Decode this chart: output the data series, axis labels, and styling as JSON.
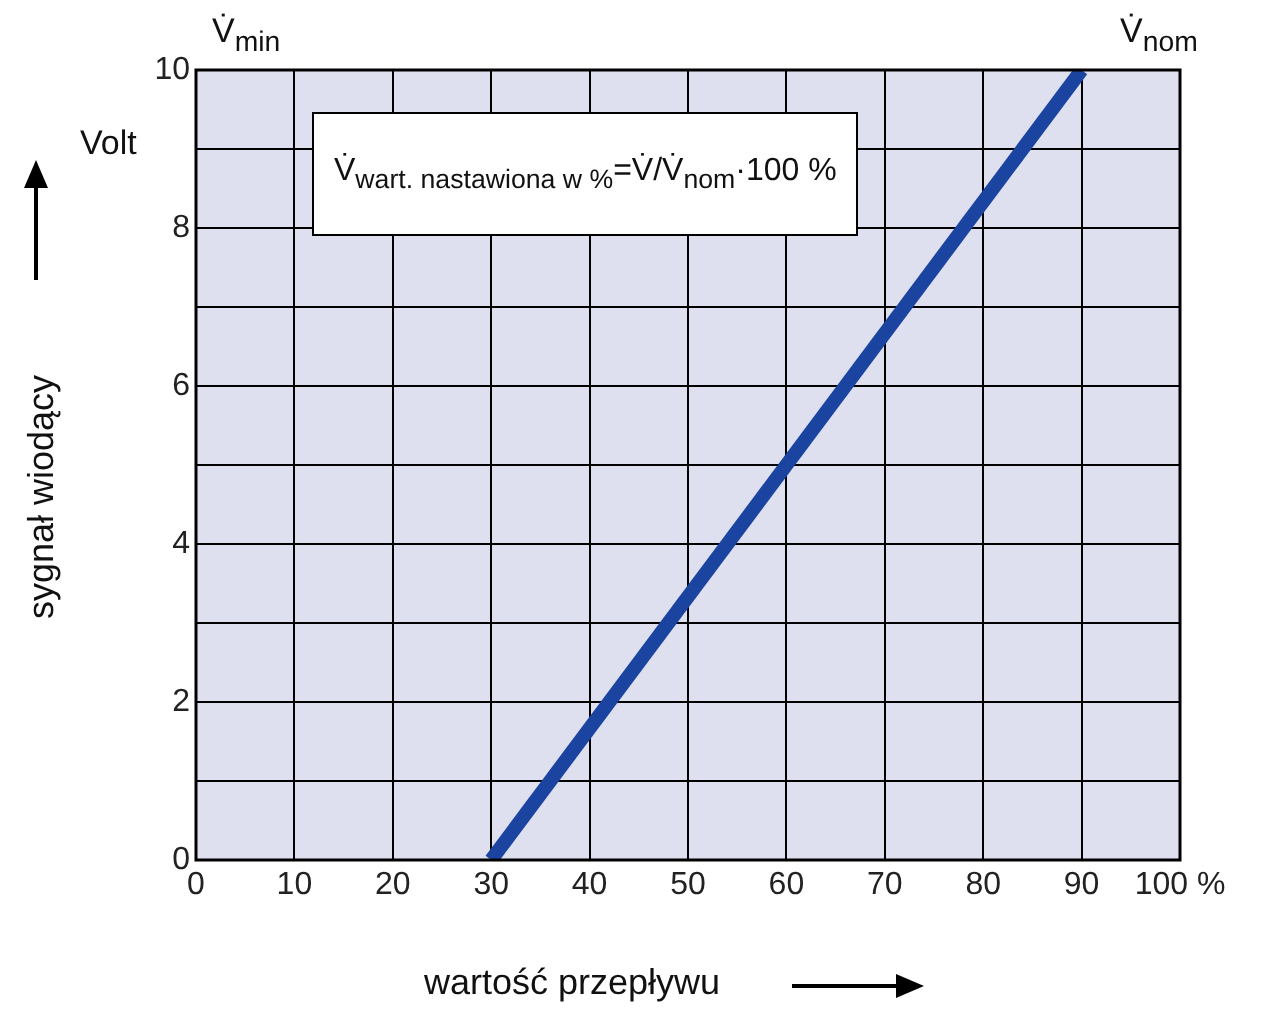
{
  "chart_data": {
    "type": "line",
    "xlabel": "wartość przepływu",
    "ylabel": "sygnał wiodący",
    "annotations": [
      "Volt",
      "V̇$_{min}$",
      "V̇$_{nom}$",
      "V̇$_{wart. nastawiona w %}$=V̇/V̇$_{nom}$·100 %"
    ],
    "series": [
      {
        "color": "#1a44a0",
        "x": [
          30,
          90
        ],
        "values": [
          0,
          10
        ]
      }
    ],
    "xlim": [
      0,
      100
    ],
    "xticks": [
      0,
      10,
      20,
      30,
      40,
      50,
      60,
      70,
      80,
      90,
      {
        "value": 100,
        "label": "100 %"
      }
    ],
    "ylim": [
      0,
      10
    ],
    "yticks": [
      0,
      {
        "value": 1,
        "label": null
      },
      2,
      {
        "value": 3,
        "label": null
      },
      4,
      {
        "value": 5,
        "label": null
      },
      6,
      {
        "value": 7,
        "label": null
      },
      8,
      {
        "value": 9,
        "label": null
      },
      10
    ],
    "grid": true,
    "legend": false,
    "marker": "none",
    "line_style": "solid"
  }
}
